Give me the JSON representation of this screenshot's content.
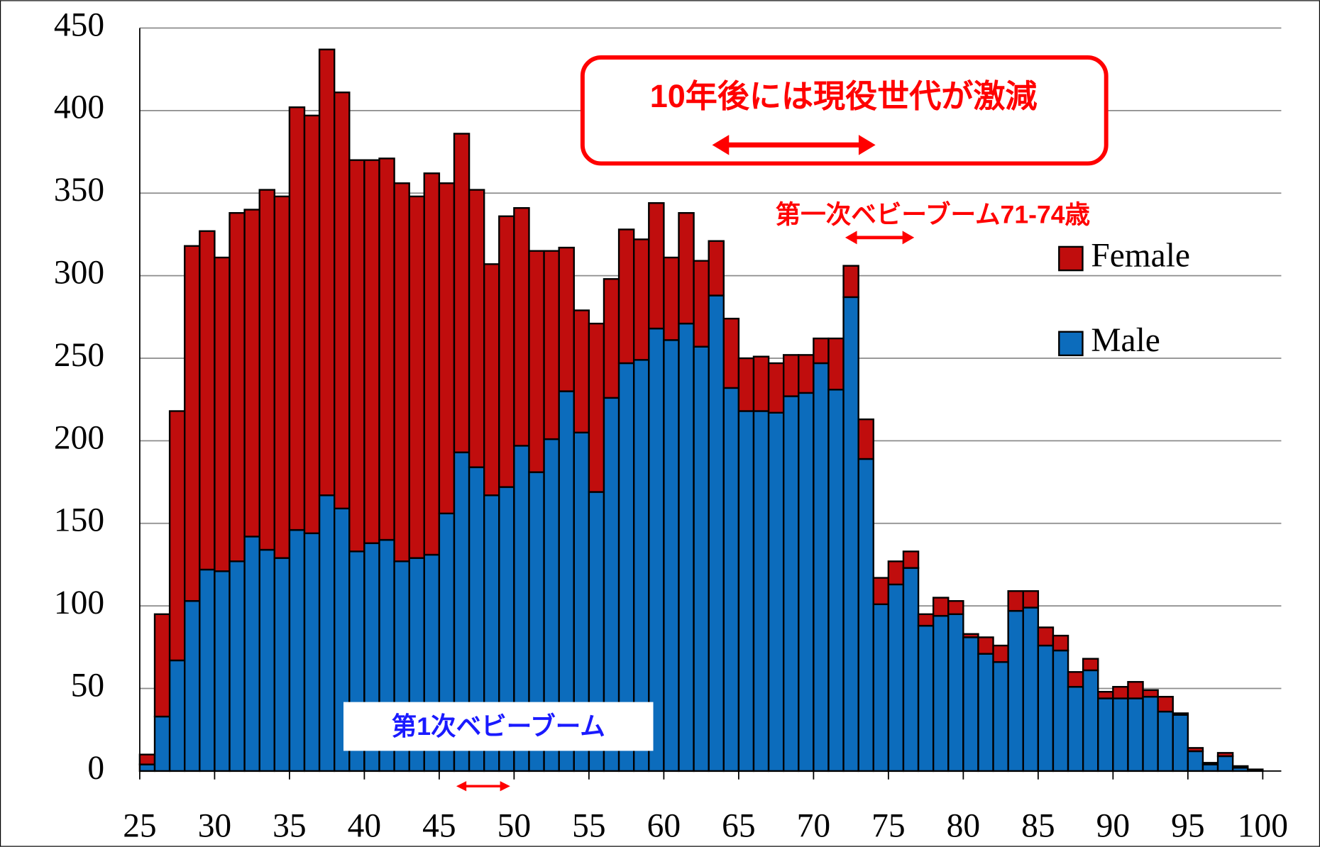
{
  "chart_data": {
    "type": "stacked_bar",
    "x": [
      25,
      26,
      27,
      28,
      29,
      30,
      31,
      32,
      33,
      34,
      35,
      36,
      37,
      38,
      39,
      40,
      41,
      42,
      43,
      44,
      45,
      46,
      47,
      48,
      49,
      50,
      51,
      52,
      53,
      54,
      55,
      56,
      57,
      58,
      59,
      60,
      61,
      62,
      63,
      64,
      65,
      66,
      67,
      68,
      69,
      70,
      71,
      72,
      73,
      74,
      75,
      76,
      77,
      78,
      79,
      80,
      81,
      82,
      83,
      84,
      85,
      86,
      87,
      88,
      89,
      90,
      91,
      92,
      93,
      94,
      95,
      96,
      97,
      98,
      99
    ],
    "series": [
      {
        "name": "Male",
        "color": "#0c6cbc",
        "values": [
          4,
          33,
          67,
          103,
          122,
          121,
          127,
          142,
          134,
          129,
          146,
          144,
          167,
          159,
          133,
          138,
          140,
          127,
          129,
          131,
          156,
          193,
          184,
          167,
          172,
          197,
          181,
          201,
          230,
          205,
          169,
          226,
          247,
          249,
          268,
          261,
          271,
          257,
          288,
          232,
          218,
          218,
          217,
          227,
          229,
          247,
          231,
          287,
          189,
          101,
          113,
          123,
          88,
          94,
          95,
          81,
          71,
          66,
          97,
          99,
          76,
          73,
          51,
          61,
          44,
          44,
          44,
          45,
          36,
          34,
          12,
          4,
          9,
          2,
          1
        ]
      },
      {
        "name": "Female",
        "color": "#c00d0d",
        "values": [
          6,
          62,
          151,
          215,
          205,
          190,
          211,
          198,
          218,
          219,
          256,
          253,
          270,
          252,
          237,
          232,
          231,
          229,
          219,
          231,
          200,
          193,
          168,
          140,
          164,
          144,
          134,
          114,
          87,
          74,
          102,
          72,
          81,
          73,
          76,
          50,
          67,
          52,
          33,
          42,
          32,
          33,
          30,
          25,
          23,
          15,
          31,
          19,
          24,
          16,
          14,
          10,
          7,
          11,
          8,
          2,
          10,
          10,
          12,
          10,
          11,
          9,
          9,
          7,
          4,
          7,
          10,
          4,
          9,
          1,
          2,
          1,
          2,
          1,
          0
        ]
      }
    ],
    "xlim": [
      25,
      100
    ],
    "xticks": [
      25,
      30,
      35,
      40,
      45,
      50,
      55,
      60,
      65,
      70,
      75,
      80,
      85,
      90,
      95,
      100
    ],
    "ylim": [
      0,
      450
    ],
    "yticks": [
      0,
      50,
      100,
      150,
      200,
      250,
      300,
      350,
      400,
      450
    ],
    "grid": true,
    "legend": "right",
    "annotations": [
      "10年後には現役世代が激減",
      "第一次ベビーブーム71-74歳",
      "第1次ベビーブーム"
    ]
  }
}
